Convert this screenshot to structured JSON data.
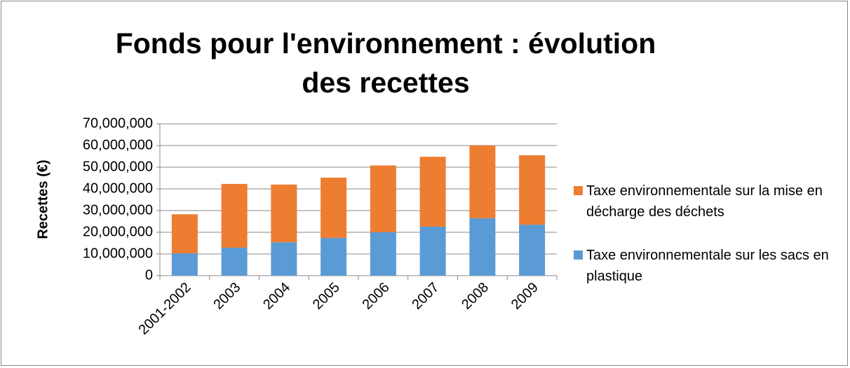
{
  "chart_data": {
    "type": "bar",
    "stacked": true,
    "title": "Fonds pour l'environnement : évolution des recettes",
    "ylabel": "Recettes (€)",
    "categories": [
      "2001-2002",
      "2003",
      "2004",
      "2005",
      "2006",
      "2007",
      "2008",
      "2009"
    ],
    "series": [
      {
        "name": "Taxe environnementale sur les sacs en plastique",
        "color": "#5b9bd5",
        "values": [
          10300000,
          12900000,
          15400000,
          17400000,
          20000000,
          22600000,
          26500000,
          23500000
        ]
      },
      {
        "name": "Taxe environnementale sur la mise en décharge des déchets",
        "color": "#ed7d31",
        "values": [
          18000000,
          29400000,
          26600000,
          27800000,
          30800000,
          32200000,
          33500000,
          32000000
        ]
      }
    ],
    "ylim": [
      0,
      70000000
    ],
    "yticks": [
      0,
      {
        "value": 10000000,
        "label": "10,000,000"
      },
      {
        "value": 20000000,
        "label": "20,000,000"
      },
      {
        "value": 30000000,
        "label": "30,000,000"
      },
      {
        "value": 40000000,
        "label": "40,000,000"
      },
      {
        "value": 50000000,
        "label": "50,000,000"
      },
      {
        "value": 60000000,
        "label": "60,000,000"
      },
      {
        "value": 70000000,
        "label": "70,000,000"
      }
    ],
    "grid": true,
    "legend": "right"
  }
}
